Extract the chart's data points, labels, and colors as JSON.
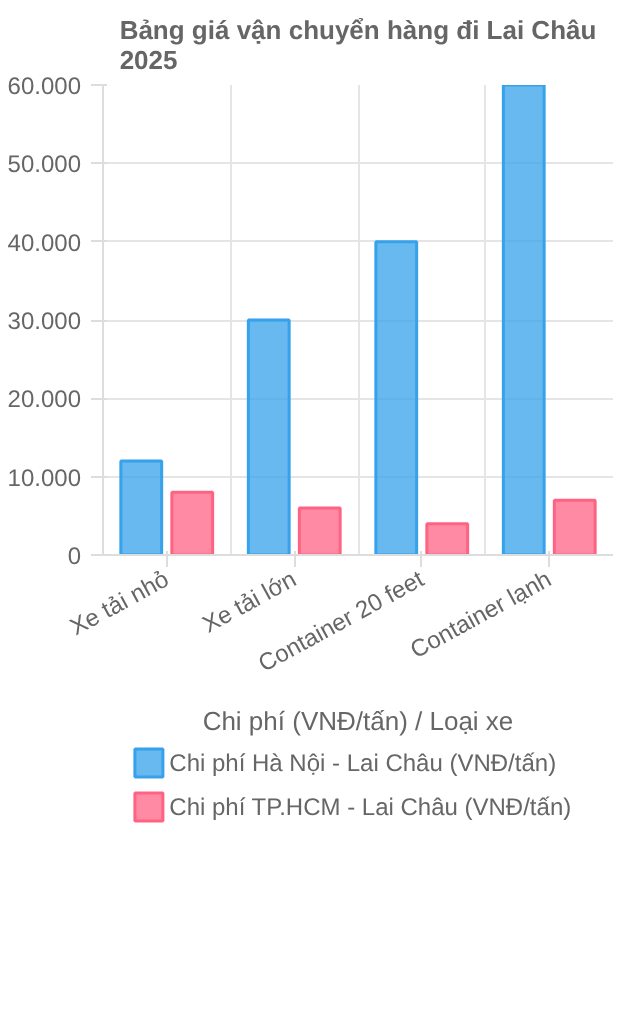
{
  "chart_data": {
    "type": "bar",
    "title": "Bảng giá vận chuyển hàng đi Lai Châu 2025",
    "categories": [
      "Xe tải nhỏ",
      "Xe tải lớn",
      "Container 20 feet",
      "Container lạnh"
    ],
    "series": [
      {
        "name": "Chi phí Hà Nội - Lai Châu (VNĐ/tấn)",
        "color": "#36a2eb",
        "values": [
          12000,
          30000,
          40000,
          60000
        ]
      },
      {
        "name": "Chi phí TP.HCM - Lai Châu (VNĐ/tấn)",
        "color": "#ff6384",
        "values": [
          8000,
          6000,
          4000,
          7000
        ]
      }
    ],
    "xlabel": "Chi phí (VNĐ/tấn) / Loại xe",
    "ylim": [
      0,
      60000
    ],
    "yticks": [
      {
        "value": 0,
        "label": "0"
      },
      {
        "value": 10000,
        "label": "10.000"
      },
      {
        "value": 20000,
        "label": "20.000"
      },
      {
        "value": 30000,
        "label": "30.000"
      },
      {
        "value": 40000,
        "label": "40.000"
      },
      {
        "value": 50000,
        "label": "50.000"
      },
      {
        "value": 60000,
        "label": "60.000"
      }
    ],
    "grid": true,
    "legend": "bottom"
  }
}
